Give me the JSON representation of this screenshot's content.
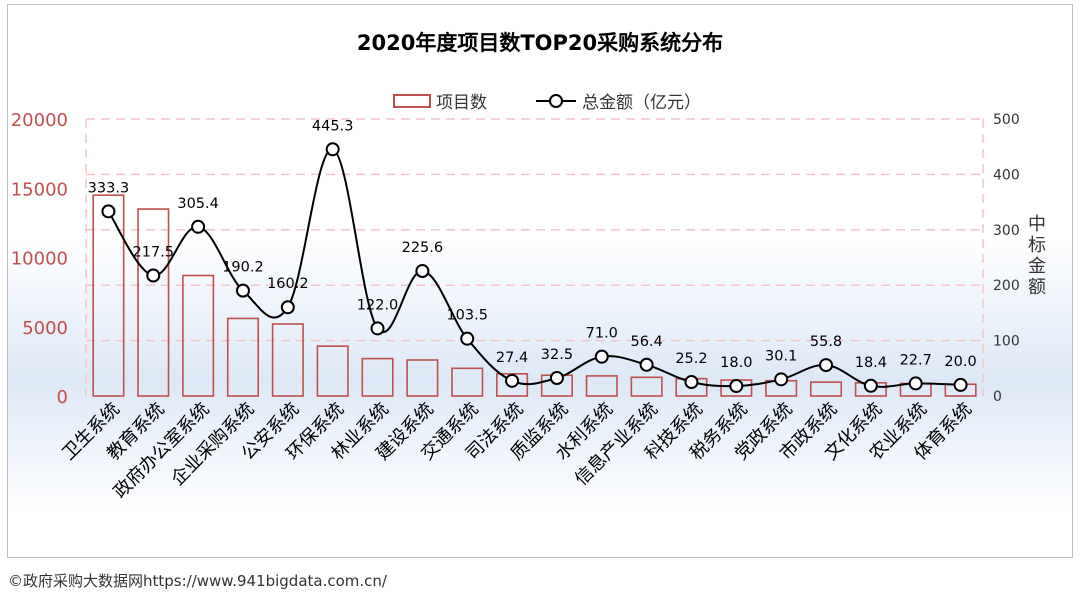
{
  "chart_data": {
    "type": "bar+line",
    "title": "2020年度项目数TOP20采购系统分布",
    "categories": [
      "卫生系统",
      "教育系统",
      "政府办公室系统",
      "企业采购系统",
      "公安系统",
      "环保系统",
      "林业系统",
      "建设系统",
      "交通系统",
      "司法系统",
      "质监系统",
      "水利系统",
      "信息产业系统",
      "科技系统",
      "税务系统",
      "党政系统",
      "市政系统",
      "文化系统",
      "农业系统",
      "体育系统"
    ],
    "series": [
      {
        "name": "项目数",
        "type": "bar",
        "axis": "left",
        "values": [
          14500,
          13500,
          8700,
          5600,
          5200,
          3600,
          2700,
          2600,
          2000,
          1600,
          1500,
          1450,
          1350,
          1250,
          1150,
          1100,
          1000,
          950,
          900,
          850
        ]
      },
      {
        "name": "总金额（亿元）",
        "type": "line",
        "axis": "right",
        "values": [
          333.3,
          217.5,
          305.4,
          190.2,
          160.2,
          445.3,
          122.0,
          225.6,
          103.5,
          27.4,
          32.5,
          71.0,
          56.4,
          25.2,
          18.0,
          30.1,
          55.8,
          18.4,
          22.7,
          20.0
        ],
        "labels": [
          "333.3",
          "217.5",
          "305.4",
          "190.2",
          "160.2",
          "445.3",
          "122.0",
          "225.6",
          "103.5",
          "27.4",
          "32.5",
          "71.0",
          "56.4",
          "25.2",
          "18.0",
          "30.1",
          "55.8",
          "18.4",
          "22.7",
          "20.0"
        ]
      }
    ],
    "left_axis": {
      "range": [
        0,
        20000
      ],
      "ticks": [
        "0",
        "5000",
        "10000",
        "15000",
        "20000"
      ]
    },
    "right_axis": {
      "range": [
        0,
        500
      ],
      "ticks": [
        "0",
        "100",
        "200",
        "300",
        "400",
        "500"
      ],
      "label": "中标金额"
    },
    "legend": {
      "position": "top",
      "items": [
        "项目数",
        "总金额（亿元）"
      ]
    },
    "colors": {
      "bar": "#c0504d",
      "line": "#000000",
      "left_ticks": "#c0504d",
      "grid": "#f2c6c6"
    }
  },
  "footer": {
    "source": "©政府采购大数据网https://www.941bigdata.com.cn/"
  }
}
